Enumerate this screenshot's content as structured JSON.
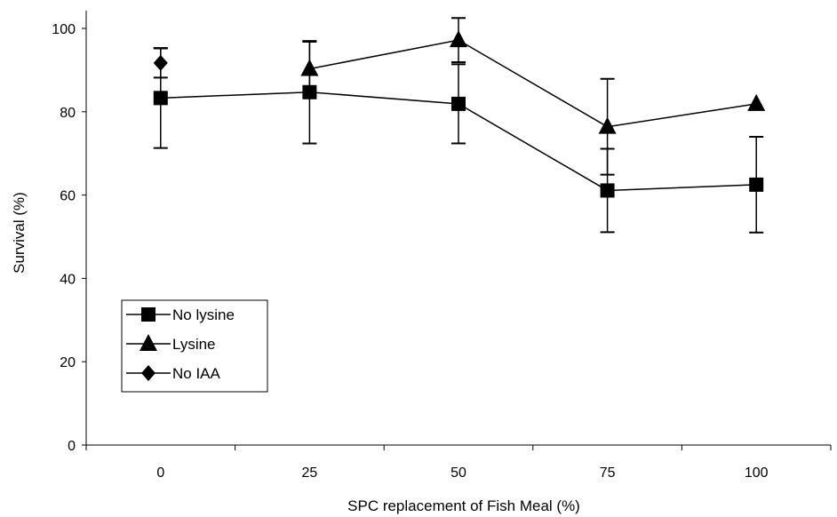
{
  "chart_data": {
    "type": "line",
    "title": "",
    "xlabel": "SPC replacement of Fish Meal (%)",
    "ylabel": "Survival (%)",
    "categories": [
      "0",
      "25",
      "50",
      "75",
      "100"
    ],
    "ylim": [
      0,
      100
    ],
    "yticks": [
      "0",
      "20",
      "40",
      "60",
      "80",
      "100"
    ],
    "grid": false,
    "legend_position": "lower-left",
    "series": [
      {
        "name": "No lysine",
        "marker": "square",
        "color": "#000000",
        "values": [
          83.3,
          84.7,
          81.9,
          61.1,
          62.5
        ],
        "error": [
          12.0,
          12.3,
          9.5,
          10.0,
          11.5
        ]
      },
      {
        "name": "Lysine",
        "marker": "triangle",
        "color": "#000000",
        "values": [
          null,
          90.3,
          97.2,
          76.4,
          81.9
        ],
        "error": [
          null,
          6.5,
          5.3,
          11.5,
          0
        ]
      },
      {
        "name": "No IAA",
        "marker": "diamond",
        "color": "#000000",
        "values": [
          91.7,
          null,
          null,
          null,
          null
        ],
        "error": [
          3.5,
          null,
          null,
          null,
          null
        ]
      }
    ]
  }
}
